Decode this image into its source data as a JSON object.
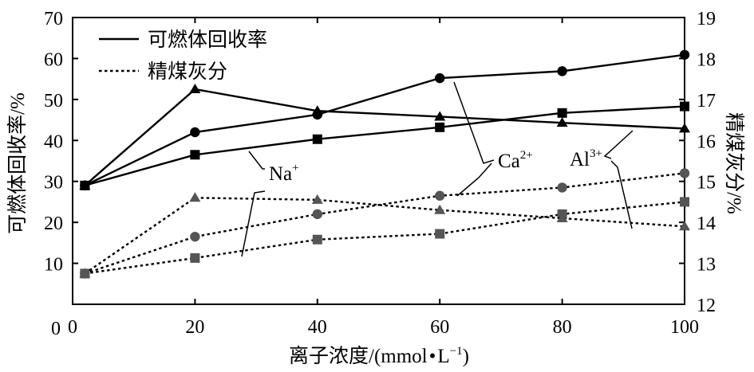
{
  "chart_data": {
    "type": "line",
    "title": "",
    "xlabel": "离子浓度/(mmol·L⁻¹)",
    "xlabel_parts": {
      "main": "离子浓度/(mmol",
      "dot": "•",
      "unit": "L",
      "exp": "−1",
      "close": ")"
    },
    "ylabel_left": "可燃体回收率/%",
    "ylabel_right": "精煤灰分/%",
    "xlim": [
      0,
      100
    ],
    "ylim_left": [
      0,
      70
    ],
    "ylim_right": [
      12,
      19
    ],
    "x_ticks": [
      0,
      20,
      40,
      60,
      80,
      100
    ],
    "y_ticks_left": [
      10,
      20,
      30,
      40,
      50,
      60,
      70
    ],
    "y_ticks_left_zero": "0",
    "y_ticks_right": [
      12,
      13,
      14,
      15,
      16,
      17,
      18,
      19
    ],
    "grid": false,
    "legend_position": "top-left",
    "legend": [
      {
        "label": "可燃体回收率",
        "style": "solid"
      },
      {
        "label": "精煤灰分",
        "style": "dotted"
      }
    ],
    "annotations": [
      {
        "base": "Na",
        "sup": "+"
      },
      {
        "base": "Ca",
        "sup": "2+"
      },
      {
        "base": "Al",
        "sup": "3+"
      }
    ],
    "series": [
      {
        "group": "recovery",
        "ion": "Na+",
        "marker": "square",
        "axis": "left",
        "line": "solid",
        "color": "#000000",
        "x": [
          2,
          20,
          40,
          60,
          80,
          100
        ],
        "y": [
          29,
          36.5,
          40.3,
          43.2,
          46.7,
          48.3
        ]
      },
      {
        "group": "recovery",
        "ion": "Ca2+",
        "marker": "circle",
        "axis": "left",
        "line": "solid",
        "color": "#000000",
        "x": [
          2,
          20,
          40,
          60,
          80,
          100
        ],
        "y": [
          29,
          42,
          46.3,
          55.2,
          56.9,
          60.9
        ]
      },
      {
        "group": "recovery",
        "ion": "Al3+",
        "marker": "triangle",
        "axis": "left",
        "line": "solid",
        "color": "#000000",
        "x": [
          2,
          20,
          40,
          60,
          80,
          100
        ],
        "y": [
          29,
          52.5,
          47.2,
          45.8,
          44.3,
          42.9
        ]
      },
      {
        "group": "ash",
        "ion": "Na+",
        "marker": "square",
        "axis": "right",
        "line": "dotted",
        "color": "#555555",
        "x": [
          2,
          20,
          40,
          60,
          80,
          100
        ],
        "y": [
          12.75,
          13.13,
          13.58,
          13.72,
          14.2,
          14.5
        ]
      },
      {
        "group": "ash",
        "ion": "Ca2+",
        "marker": "circle",
        "axis": "right",
        "line": "dotted",
        "color": "#555555",
        "x": [
          2,
          20,
          40,
          60,
          80,
          100
        ],
        "y": [
          12.75,
          13.65,
          14.2,
          14.65,
          14.85,
          15.2
        ]
      },
      {
        "group": "ash",
        "ion": "Al3+",
        "marker": "triangle",
        "axis": "right",
        "line": "dotted",
        "color": "#555555",
        "x": [
          2,
          20,
          40,
          60,
          80,
          100
        ],
        "y": [
          12.75,
          14.6,
          14.55,
          14.3,
          14.1,
          13.9
        ]
      }
    ]
  }
}
